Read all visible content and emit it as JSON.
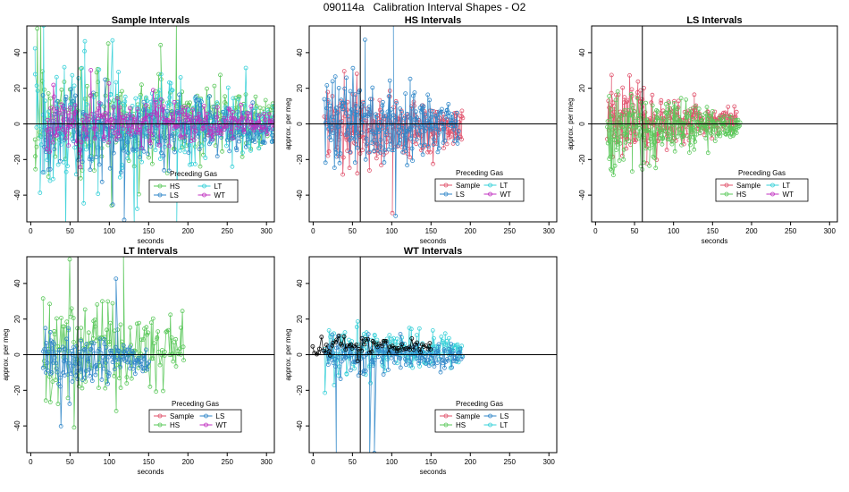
{
  "figure": {
    "title": "090114a   Calibration Interval Shapes - O2"
  },
  "colors": {
    "Sample": "#e0506a",
    "HS": "#5ac85a",
    "LS": "#2f86c8",
    "LT": "#35d0d8",
    "WT": "#c030c0",
    "self": "#000000"
  },
  "chart_data": [
    {
      "type": "scatter",
      "id": "sample",
      "title": "Sample Intervals",
      "xlabel": "seconds",
      "ylabel": "",
      "xlim": [
        -5,
        310
      ],
      "ylim": [
        -55,
        55
      ],
      "xticks": [
        0,
        50,
        100,
        150,
        200,
        250,
        300
      ],
      "yticks": [
        -40,
        -20,
        0,
        20,
        40
      ],
      "vline": 60,
      "hline": 0,
      "legend": {
        "title": "Preceding Gas",
        "position": "bottom-center",
        "entries": [
          "HS",
          "LT",
          "LS",
          "WT"
        ]
      },
      "series": [
        {
          "name": "HS",
          "x_range": [
            5,
            310
          ],
          "n": 300,
          "amp_start": 35,
          "amp_end": 16,
          "mean": 2,
          "outliers": 6
        },
        {
          "name": "LT",
          "x_range": [
            5,
            310
          ],
          "n": 280,
          "amp_start": 40,
          "amp_end": 15,
          "mean": 0,
          "outliers": 8
        },
        {
          "name": "LS",
          "x_range": [
            15,
            310
          ],
          "n": 260,
          "amp_start": 30,
          "amp_end": 12,
          "mean": -3,
          "outliers": 2
        },
        {
          "name": "WT",
          "x_range": [
            20,
            310
          ],
          "n": 240,
          "amp_start": 22,
          "amp_end": 6,
          "mean": 0,
          "outliers": 0
        }
      ]
    },
    {
      "type": "scatter",
      "id": "hs",
      "title": "HS Intervals",
      "xlabel": "seconds",
      "ylabel": "approx. per meg",
      "xlim": [
        -5,
        310
      ],
      "ylim": [
        -55,
        55
      ],
      "xticks": [
        0,
        50,
        100,
        150,
        200,
        250,
        300
      ],
      "yticks": [
        -40,
        -20,
        0,
        20,
        40
      ],
      "vline": 60,
      "hline": 0,
      "legend": {
        "title": "Preceding Gas",
        "position": "bottom-center",
        "entries": [
          "Sample",
          "LT",
          "LS",
          "WT"
        ]
      },
      "series": [
        {
          "name": "Sample",
          "x_range": [
            15,
            190
          ],
          "n": 260,
          "amp_start": 30,
          "amp_end": 10,
          "mean": -3,
          "outliers": 1
        },
        {
          "name": "LS",
          "x_range": [
            15,
            185
          ],
          "n": 230,
          "amp_start": 32,
          "amp_end": 14,
          "mean": 0,
          "outliers": 3
        }
      ]
    },
    {
      "type": "scatter",
      "id": "ls",
      "title": "LS Intervals",
      "xlabel": "seconds",
      "ylabel": "approx. per meg",
      "xlim": [
        -5,
        310
      ],
      "ylim": [
        -55,
        55
      ],
      "xticks": [
        0,
        50,
        100,
        150,
        200,
        250,
        300
      ],
      "yticks": [
        -40,
        -20,
        0,
        20,
        40
      ],
      "vline": 60,
      "hline": 0,
      "legend": {
        "title": "Preceding Gas",
        "position": "bottom-center",
        "entries": [
          "Sample",
          "LT",
          "HS",
          "WT"
        ]
      },
      "series": [
        {
          "name": "Sample",
          "x_range": [
            15,
            180
          ],
          "n": 260,
          "amp_start": 26,
          "amp_end": 6,
          "mean": 2,
          "outliers": 0
        },
        {
          "name": "HS",
          "x_range": [
            15,
            185
          ],
          "n": 260,
          "amp_start": 28,
          "amp_end": 8,
          "mean": -2,
          "outliers": 0
        }
      ]
    },
    {
      "type": "scatter",
      "id": "lt",
      "title": "LT Intervals",
      "xlabel": "seconds",
      "ylabel": "approx. per meg",
      "xlim": [
        -5,
        310
      ],
      "ylim": [
        -55,
        55
      ],
      "xticks": [
        0,
        50,
        100,
        150,
        200,
        250,
        300
      ],
      "yticks": [
        -40,
        -20,
        0,
        20,
        40
      ],
      "vline": 60,
      "hline": 0,
      "legend": {
        "title": "Preceding Gas",
        "position": "bottom-center",
        "entries": [
          "Sample",
          "LS",
          "HS",
          "WT"
        ]
      },
      "series": [
        {
          "name": "HS",
          "x_range": [
            15,
            195
          ],
          "n": 150,
          "amp_start": 35,
          "amp_end": 18,
          "mean": 5,
          "outliers": 2
        },
        {
          "name": "LS",
          "x_range": [
            15,
            150
          ],
          "n": 150,
          "amp_start": 22,
          "amp_end": 8,
          "mean": -3,
          "outliers": 2
        }
      ]
    },
    {
      "type": "scatter",
      "id": "wt",
      "title": "WT Intervals",
      "xlabel": "seconds",
      "ylabel": "approx. per meg",
      "xlim": [
        -5,
        310
      ],
      "ylim": [
        -55,
        55
      ],
      "xticks": [
        0,
        50,
        100,
        150,
        200,
        250,
        300
      ],
      "yticks": [
        -40,
        -20,
        0,
        20,
        40
      ],
      "vline": 60,
      "hline": 0,
      "legend": {
        "title": "Preceding Gas",
        "position": "bottom-center",
        "entries": [
          "Sample",
          "LS",
          "HS",
          "LT"
        ]
      },
      "series": [
        {
          "name": "LT",
          "x_range": [
            15,
            190
          ],
          "n": 180,
          "amp_start": 18,
          "amp_end": 8,
          "mean": 3,
          "outliers": 0
        },
        {
          "name": "LS",
          "x_range": [
            15,
            190
          ],
          "n": 160,
          "amp_start": 14,
          "amp_end": 7,
          "mean": -1,
          "outliers": 3
        },
        {
          "name": "self",
          "x_range": [
            0,
            150
          ],
          "n": 70,
          "amp_start": 8,
          "amp_end": 3,
          "mean": 4,
          "outliers": 0
        }
      ]
    }
  ]
}
